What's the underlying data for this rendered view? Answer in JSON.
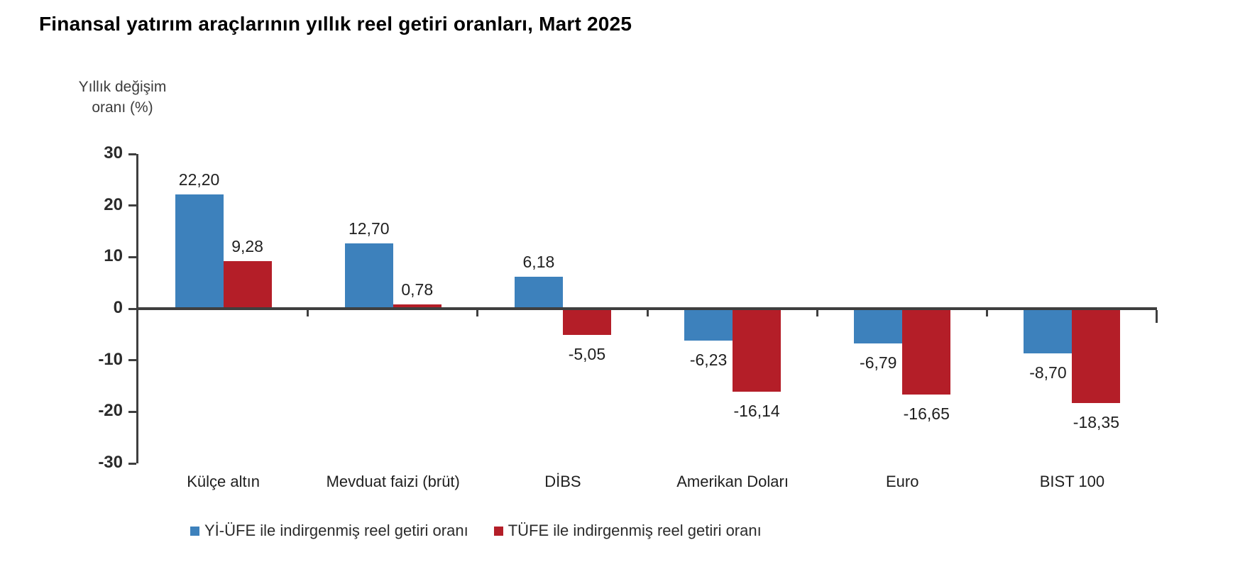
{
  "title": "Finansal yatırım araçlarının yıllık reel getiri oranları, Mart 2025",
  "chart_data": {
    "type": "bar",
    "title": "Finansal yatırım araçlarının yıllık reel getiri oranları, Mart 2025",
    "ylabel": "Yıllık değişim oranı (%)",
    "ylabel_lines": [
      "Yıllık değişim",
      "oranı (%)"
    ],
    "categories": [
      "Külçe altın",
      "Mevduat faizi (brüt)",
      "DİBS",
      "Amerikan Doları",
      "Euro",
      "BIST 100"
    ],
    "series": [
      {
        "name": "Yİ-ÜFE ile indirgenmiş reel getiri oranı",
        "color": "#3d81bc",
        "values": [
          22.2,
          12.7,
          6.18,
          -6.23,
          -6.79,
          -8.7
        ],
        "value_labels": [
          "22,20",
          "12,70",
          "6,18",
          "-6,23",
          "-6,79",
          "-8,70"
        ]
      },
      {
        "name": "TÜFE ile indirgenmiş reel getiri oranı",
        "color": "#b41e28",
        "values": [
          9.28,
          0.78,
          -5.05,
          -16.14,
          -16.65,
          -18.35
        ],
        "value_labels": [
          "9,28",
          "0,78",
          "-5,05",
          "-16,14",
          "-16,65",
          "-18,35"
        ]
      }
    ],
    "yticks": [
      30,
      20,
      10,
      0,
      -10,
      -20,
      -30
    ],
    "ylim": [
      -30,
      30
    ],
    "grid": false,
    "legend_position": "bottom",
    "axis_color": "#3f3f3f"
  }
}
